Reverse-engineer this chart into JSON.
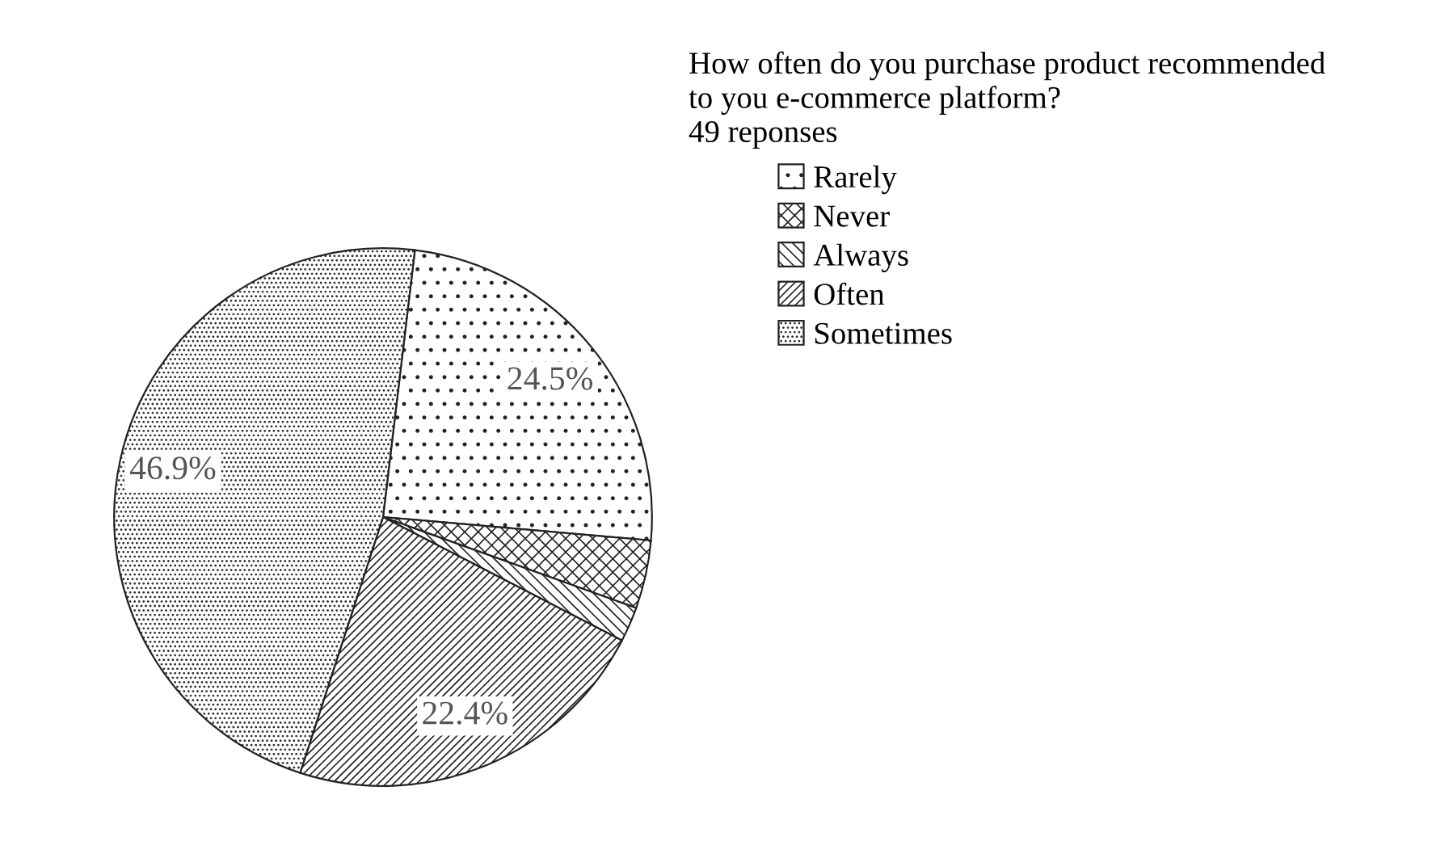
{
  "chart_data": {
    "type": "pie",
    "title": "How often do you purchase product recommended\nto you e-commerce platform?",
    "subtitle": "49 reponses",
    "categories": [
      "Rarely",
      "Never",
      "Always",
      "Often",
      "Sometimes"
    ],
    "values": [
      24.5,
      4.1,
      2.1,
      22.4,
      46.9
    ],
    "colors": [
      "#222222",
      "#222222",
      "#222222",
      "#222222",
      "#222222"
    ],
    "value_labels": [
      "24.5%",
      null,
      null,
      "22.4%",
      "46.9%"
    ],
    "legend": "top right"
  }
}
